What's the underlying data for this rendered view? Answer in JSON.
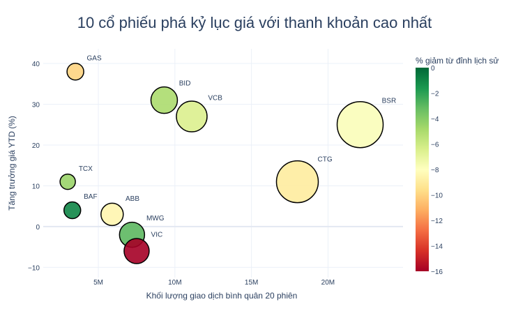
{
  "chart_data": {
    "type": "scatter",
    "title": "10 cổ phiếu phá kỷ lục giá với thanh khoản cao nhất",
    "xlabel": "Khối lượng giao dịch bình quân 20 phiên",
    "ylabel": "Tăng trưởng giá YTD (%)",
    "xlim": [
      1.4,
      24.9
    ],
    "ylim": [
      -12.5,
      43.6
    ],
    "x_unit": "M",
    "x_ticks": [
      5,
      10,
      15,
      20
    ],
    "x_tick_labels": [
      "5M",
      "10M",
      "15M",
      "20M"
    ],
    "y_ticks": [
      -10,
      0,
      10,
      20,
      30,
      40
    ],
    "y_tick_labels": [
      "−10",
      "0",
      "10",
      "20",
      "30",
      "40"
    ],
    "grid": true,
    "colorbar": {
      "title": "% giảm từ đỉnh lịch sử",
      "range": [
        -16,
        0
      ],
      "ticks": [
        0,
        -2,
        -4,
        -6,
        -8,
        -10,
        -12,
        -14,
        -16
      ],
      "tick_labels": [
        "0",
        "−2",
        "−4",
        "−6",
        "−8",
        "−10",
        "−12",
        "−14",
        "−16"
      ],
      "colorscale": [
        "#a50026",
        "#d73027",
        "#f46d43",
        "#fdae61",
        "#fee08b",
        "#ffffbf",
        "#d9ef8b",
        "#a6d96a",
        "#66bd63",
        "#1a9850",
        "#006837"
      ]
    },
    "points": [
      {
        "label": "GAS",
        "x": 3.5,
        "y": 38,
        "color_value": -10,
        "size": 12
      },
      {
        "label": "BID",
        "x": 9.3,
        "y": 31,
        "color_value": -5,
        "size": 19
      },
      {
        "label": "VCB",
        "x": 11.1,
        "y": 27,
        "color_value": -6.5,
        "size": 22
      },
      {
        "label": "BSR",
        "x": 22.1,
        "y": 25,
        "color_value": -7.8,
        "size": 33
      },
      {
        "label": "CTG",
        "x": 18.0,
        "y": 11,
        "color_value": -9,
        "size": 30
      },
      {
        "label": "TCX",
        "x": 3.0,
        "y": 11,
        "color_value": -4.5,
        "size": 11
      },
      {
        "label": "BAF",
        "x": 3.3,
        "y": 4,
        "color_value": -1,
        "size": 12
      },
      {
        "label": "ABB",
        "x": 5.9,
        "y": 3,
        "color_value": -8.5,
        "size": 16
      },
      {
        "label": "MWG",
        "x": 7.2,
        "y": -2,
        "color_value": -3,
        "size": 18
      },
      {
        "label": "VIC",
        "x": 7.5,
        "y": -6,
        "color_value": -16,
        "size": 18
      }
    ]
  }
}
